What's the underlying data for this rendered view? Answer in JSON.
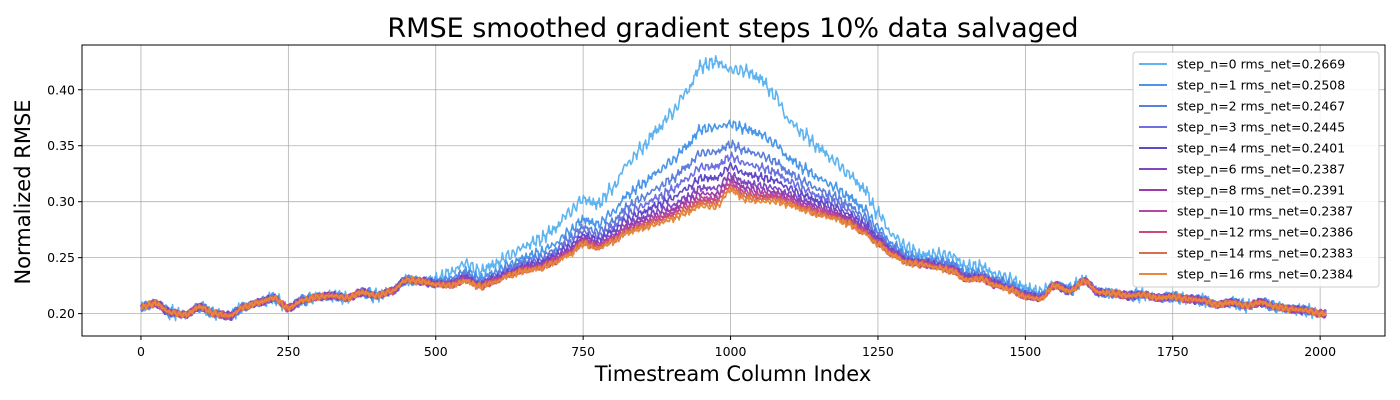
{
  "chart_data": {
    "type": "line",
    "title": "RMSE smoothed gradient steps 10% data salvaged",
    "xlabel": "Timestream Column Index",
    "ylabel": "Normalized RMSE",
    "xlim": [
      -100,
      2110
    ],
    "ylim": [
      0.18,
      0.44
    ],
    "xticks": [
      0,
      250,
      500,
      750,
      1000,
      1250,
      1500,
      1750,
      2000
    ],
    "xtick_labels": [
      "0",
      "250",
      "500",
      "750",
      "1000",
      "1250",
      "1500",
      "1750",
      "2000"
    ],
    "yticks": [
      0.2,
      0.25,
      0.3,
      0.35,
      0.4
    ],
    "ytick_labels": [
      "0.20",
      "0.25",
      "0.30",
      "0.35",
      "0.40"
    ],
    "grid": true,
    "legend_position": "top-right",
    "x": [
      0,
      25,
      50,
      75,
      100,
      125,
      150,
      175,
      200,
      225,
      250,
      275,
      300,
      325,
      350,
      375,
      400,
      425,
      450,
      475,
      500,
      525,
      550,
      575,
      600,
      625,
      650,
      675,
      700,
      725,
      750,
      775,
      800,
      825,
      850,
      875,
      900,
      925,
      950,
      975,
      1000,
      1025,
      1050,
      1075,
      1100,
      1125,
      1150,
      1175,
      1200,
      1225,
      1250,
      1275,
      1300,
      1325,
      1350,
      1375,
      1400,
      1425,
      1450,
      1475,
      1500,
      1525,
      1550,
      1575,
      1600,
      1625,
      1650,
      1675,
      1700,
      1725,
      1750,
      1775,
      1800,
      1825,
      1850,
      1875,
      1900,
      1925,
      1950,
      1975,
      2000,
      2010
    ],
    "base": [
      0.206,
      0.209,
      0.201,
      0.199,
      0.206,
      0.2,
      0.198,
      0.206,
      0.21,
      0.214,
      0.205,
      0.212,
      0.215,
      0.216,
      0.214,
      0.219,
      0.216,
      0.22,
      0.23,
      0.229,
      0.226,
      0.225,
      0.229,
      0.224,
      0.228,
      0.234,
      0.238,
      0.24,
      0.245,
      0.252,
      0.262,
      0.258,
      0.264,
      0.272,
      0.276,
      0.28,
      0.284,
      0.29,
      0.296,
      0.295,
      0.31,
      0.302,
      0.3,
      0.3,
      0.297,
      0.292,
      0.288,
      0.285,
      0.28,
      0.272,
      0.262,
      0.252,
      0.245,
      0.244,
      0.241,
      0.238,
      0.23,
      0.231,
      0.225,
      0.221,
      0.215,
      0.213,
      0.225,
      0.22,
      0.229,
      0.219,
      0.218,
      0.216,
      0.217,
      0.214,
      0.215,
      0.213,
      0.212,
      0.208,
      0.21,
      0.207,
      0.21,
      0.206,
      0.204,
      0.203,
      0.2,
      0.2
    ],
    "series": [
      {
        "name": "step_n=0 rms_net=0.2669",
        "color": "#5fb4f0",
        "factor": 1.0
      },
      {
        "name": "step_n=1 rms_net=0.2508",
        "color": "#4a96e8",
        "factor": 0.55
      },
      {
        "name": "step_n=2 rms_net=0.2467",
        "color": "#5a80dc",
        "factor": 0.38
      },
      {
        "name": "step_n=3 rms_net=0.2445",
        "color": "#6c70e0",
        "factor": 0.28
      },
      {
        "name": "step_n=4 rms_net=0.2401",
        "color": "#6048c8",
        "factor": 0.2
      },
      {
        "name": "step_n=6 rms_net=0.2387",
        "color": "#8048c0",
        "factor": 0.13
      },
      {
        "name": "step_n=8 rms_net=0.2391",
        "color": "#9a3cac",
        "factor": 0.09
      },
      {
        "name": "step_n=10 rms_net=0.2387",
        "color": "#b44aa0",
        "factor": 0.06
      },
      {
        "name": "step_n=12 rms_net=0.2386",
        "color": "#cc4a78",
        "factor": 0.04
      },
      {
        "name": "step_n=14 rms_net=0.2383",
        "color": "#d8704e",
        "factor": 0.02
      },
      {
        "name": "step_n=16 rms_net=0.2384",
        "color": "#e8883a",
        "factor": 0.0
      }
    ],
    "step0_excess": [
      0,
      0,
      0,
      0,
      0,
      0,
      0,
      0,
      0,
      0,
      0,
      0,
      0,
      0,
      0,
      0,
      0,
      0,
      0,
      0,
      0.004,
      0.012,
      0.016,
      0.014,
      0.016,
      0.018,
      0.022,
      0.026,
      0.03,
      0.038,
      0.04,
      0.04,
      0.048,
      0.062,
      0.072,
      0.084,
      0.095,
      0.108,
      0.125,
      0.13,
      0.108,
      0.115,
      0.11,
      0.095,
      0.075,
      0.068,
      0.06,
      0.052,
      0.045,
      0.04,
      0.028,
      0.018,
      0.014,
      0.008,
      0.012,
      0.014,
      0.012,
      0.011,
      0.01,
      0.01,
      0.008,
      0.006,
      0.002,
      0.002,
      0.001,
      0,
      0,
      0,
      0,
      0,
      0,
      0,
      0,
      0,
      0,
      0,
      0,
      0,
      0,
      0,
      0,
      0
    ]
  }
}
